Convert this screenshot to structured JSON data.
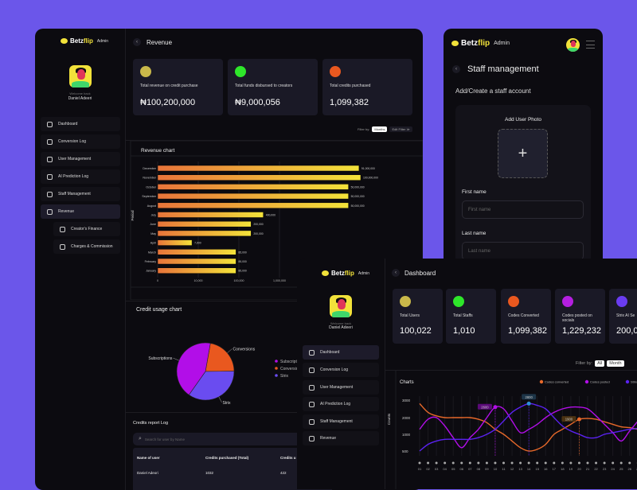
{
  "colors": {
    "background": "#6b56ea",
    "accent": "#f2e23a",
    "panel": "#0c0b10",
    "card": "#1a1926"
  },
  "brand": {
    "name_a": "Betz",
    "name_b": "flip",
    "tag": "Admin"
  },
  "user": {
    "welcome": "Welcome back",
    "name": "Daniel Adeeri"
  },
  "revenue_page": {
    "title": "Revenue",
    "nav": [
      {
        "label": "Dashboard",
        "icon": "grid-icon"
      },
      {
        "label": "Conversion Log",
        "icon": "refresh-icon"
      },
      {
        "label": "User Management",
        "icon": "user-icon"
      },
      {
        "label": "AI Prediction Log",
        "icon": "magic-wand-icon"
      },
      {
        "label": "Staff Management",
        "icon": "briefcase-icon"
      },
      {
        "label": "Revenue",
        "icon": "wallet-icon",
        "active": true
      },
      {
        "label": "Creator's Finance",
        "icon": "star-icon"
      },
      {
        "label": "Charges & Commission",
        "icon": "documents-icon"
      }
    ],
    "cards": [
      {
        "label": "Total revenue on credit purchase",
        "value": "₦100,200,000",
        "color": "#c9b84a"
      },
      {
        "label": "Total funds disbursed to creators",
        "value": "₦9,000,056",
        "color": "#2ee62a"
      },
      {
        "label": "Total credits purchased",
        "value": "1,099,382",
        "color": "#e9581f"
      }
    ],
    "filter": {
      "label": "Filter by:",
      "selected": "Months",
      "edit": "Edit Filter ≫"
    },
    "credit_usage_title": "Credit usage chart",
    "credits_log": {
      "title": "Credits report Log",
      "search_placeholder": "Search for user by Name",
      "columns": [
        "Name of user",
        "Credits purchased (Total)",
        "Credits u"
      ],
      "rows": [
        [
          "Daniel Adeori",
          "1032",
          "422"
        ]
      ]
    }
  },
  "staff_page": {
    "title": "Staff management",
    "subtitle": "Add/Create a staff account",
    "photo_label": "Add User Photo",
    "first_name_label": "First name",
    "first_name_placeholder": "First name",
    "last_name_label": "Last name",
    "last_name_placeholder": "Last name"
  },
  "dashboard_page": {
    "title": "Dashboard",
    "nav": [
      {
        "label": "Dashboard",
        "icon": "grid-icon",
        "active": true
      },
      {
        "label": "Conversion Log",
        "icon": "refresh-icon"
      },
      {
        "label": "User Management",
        "icon": "user-icon"
      },
      {
        "label": "AI Prediction Log",
        "icon": "magic-wand-icon"
      },
      {
        "label": "Staff Management",
        "icon": "briefcase-icon"
      },
      {
        "label": "Revenue",
        "icon": "wallet-icon"
      }
    ],
    "cards": [
      {
        "label": "Total Users",
        "value": "100,022",
        "color": "#c9b84a"
      },
      {
        "label": "Total Staffs",
        "value": "1,010",
        "color": "#2ee62a"
      },
      {
        "label": "Codes Converted",
        "value": "1,099,382",
        "color": "#e9581f"
      },
      {
        "label": "Codes posted on socials",
        "value": "1,229,232",
        "color": "#b41fe0"
      },
      {
        "label": "Strix AI Se",
        "value": "200,0",
        "color": "#6a3cf0"
      }
    ],
    "filter": {
      "label": "Filter by:",
      "options": [
        "All",
        "Month"
      ]
    }
  },
  "chart_data": [
    {
      "type": "bar",
      "orientation": "horizontal",
      "title": "Revenue chart",
      "xlabel": "Revenue(₦)",
      "ylabel": "Period",
      "xscale": "log",
      "xticks": [
        "0",
        "10,000",
        "100,000",
        "1,000,000"
      ],
      "categories": [
        "December",
        "November",
        "October",
        "September",
        "August",
        "July",
        "June",
        "May",
        "April",
        "March",
        "February",
        "January"
      ],
      "values": [
        91000000,
        100000000,
        50000000,
        50000000,
        50000000,
        400000,
        200000,
        200000,
        7000,
        85000,
        85000,
        85000
      ],
      "labels": [
        "91,000,000",
        "100,000,000",
        "50,000,000",
        "50,000,000",
        "50,000,000",
        "400,000",
        "200,000",
        "200,000",
        "7,000",
        "85,000",
        "85,000",
        "85,000"
      ],
      "bar_gradient": [
        "#e8743a",
        "#f3e33a"
      ],
      "grid": true
    },
    {
      "type": "pie",
      "title": "Credit usage chart",
      "slices": [
        {
          "name": "Conversions",
          "value": 22,
          "color": "#e9581f"
        },
        {
          "name": "Strix",
          "value": 35,
          "color": "#6a4cf0"
        },
        {
          "name": "Subscriptions",
          "value": 43,
          "color": "#b20ee8"
        }
      ],
      "legend": [
        "Subscriptions",
        "Conversions",
        "Strix"
      ],
      "legend_placement": "right"
    },
    {
      "type": "line",
      "title": "Charts",
      "ylabel": "Counts",
      "yticks": [
        500,
        1000,
        2000,
        3000
      ],
      "x": [
        "01",
        "02",
        "03",
        "04",
        "05",
        "06",
        "07",
        "08",
        "09",
        "10",
        "11",
        "12",
        "13",
        "14",
        "15",
        "16",
        "17",
        "18",
        "19",
        "20",
        "21",
        "22",
        "23",
        "24",
        "25",
        "26",
        "27",
        "28"
      ],
      "series": [
        {
          "name": "Codes converted",
          "color": "#e8692a",
          "values": [
            2800,
            2300,
            2100,
            2000,
            2000,
            2000,
            2000,
            1900,
            1700,
            1300,
            1000,
            800,
            600,
            500,
            550,
            700,
            1000,
            1300,
            1600,
            1900,
            1950,
            1900,
            1750,
            1600,
            1450,
            1400,
            1300,
            1300
          ]
        },
        {
          "name": "Codes posted",
          "color": "#b20ee8",
          "values": [
            1300,
            1900,
            2000,
            1500,
            900,
            600,
            900,
            1300,
            2000,
            2600,
            2500,
            1800,
            1100,
            1300,
            1600,
            2000,
            2300,
            2500,
            2600,
            2600,
            2500,
            2100,
            1600,
            1100,
            800,
            1200,
            1800,
            2400
          ]
        },
        {
          "name": "Strix",
          "color": "#5a22f0",
          "values": [
            500,
            700,
            800,
            850,
            850,
            850,
            850,
            900,
            1000,
            1300,
            1800,
            2300,
            2600,
            2800,
            2700,
            2500,
            2000,
            1500,
            1200,
            1000,
            900,
            900,
            1000,
            1100,
            1200,
            1300,
            1350,
            1400
          ]
        }
      ],
      "highlights": [
        {
          "x": "10",
          "series": "Codes posted",
          "label": "2600"
        },
        {
          "x": "14",
          "series": "Strix",
          "label": "2800"
        },
        {
          "x": "20",
          "series": "Codes converted",
          "label": "1900"
        }
      ],
      "legend_placement": "top-right",
      "grid": true
    }
  ]
}
